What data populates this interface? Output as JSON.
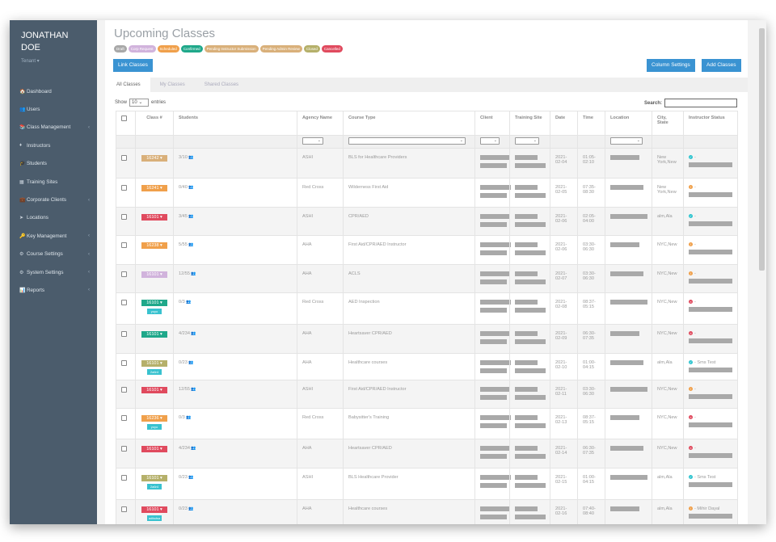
{
  "user": {
    "name_line1": "JONATHAN",
    "name_line2": "DOE",
    "tenant": "Tenant ▾"
  },
  "sidebar": {
    "items": [
      {
        "label": "Dashboard",
        "icon": "🏠",
        "chev": false
      },
      {
        "label": "Users",
        "icon": "👥",
        "chev": false
      },
      {
        "label": "Class Management",
        "icon": "📚",
        "chev": true
      },
      {
        "label": "Instructors",
        "icon": "♦",
        "chev": false
      },
      {
        "label": "Students",
        "icon": "🎓",
        "chev": false
      },
      {
        "label": "Training Sites",
        "icon": "▦",
        "chev": false
      },
      {
        "label": "Corporate Clients",
        "icon": "💼",
        "chev": true
      },
      {
        "label": "Locations",
        "icon": "➤",
        "chev": false
      },
      {
        "label": "Key Management",
        "icon": "🔑",
        "chev": true
      },
      {
        "label": "Course Settings",
        "icon": "⚙",
        "chev": true
      },
      {
        "label": "System Settings",
        "icon": "⚙",
        "chev": true
      },
      {
        "label": "Reports",
        "icon": "📊",
        "chev": true
      }
    ]
  },
  "page": {
    "title": "Upcoming Classes"
  },
  "legend": [
    {
      "label": "Draft",
      "color": "#a8a8a8"
    },
    {
      "label": "Corp Request",
      "color": "#d1b3dc"
    },
    {
      "label": "Scheduled",
      "color": "#f0a04b"
    },
    {
      "label": "Confirmed",
      "color": "#1fa88a"
    },
    {
      "label": "Pending Instructor Submission",
      "color": "#d9b07a"
    },
    {
      "label": "Pending Admin Review",
      "color": "#d9b07a"
    },
    {
      "label": "Closed",
      "color": "#b5b06a"
    },
    {
      "label": "Cancelled",
      "color": "#e04a5e"
    }
  ],
  "buttons": {
    "link": "Link Classes",
    "column_settings": "Column Settings",
    "add": "Add Classes"
  },
  "tabs": [
    "All Classes",
    "My Classes",
    "Shared Classes"
  ],
  "table_controls": {
    "show": "Show",
    "entries_value": "10 ⌄",
    "entries": "entries",
    "search": "Search:"
  },
  "columns": [
    "",
    "Class #",
    "Students",
    "Agency Name",
    "Course Type",
    "Client",
    "Training Site",
    "Date",
    "Time",
    "Location",
    "City, State",
    "Instructor Status"
  ],
  "status_colors": {
    "check": "#2ec4cf",
    "pending": "#f0a04b",
    "cancel": "#e04a5e"
  },
  "rows": [
    {
      "cls": "16242",
      "color": "#d9b07a",
      "tag": "",
      "students": "3/10",
      "agency": "ASHI",
      "course": "BLS for Healthcare Providers",
      "date": "2021-02-04",
      "time": "01:05-02:10",
      "city": "New York,New",
      "status": "check",
      "instr": "-"
    },
    {
      "cls": "16241",
      "color": "#f0a04b",
      "tag": "",
      "students": "0/40",
      "agency": "Red Cross",
      "course": "Wilderness First Aid",
      "date": "2021-02-05",
      "time": "07:35-08:30",
      "city": "New York,New",
      "status": "pending",
      "instr": "-"
    },
    {
      "cls": "16101",
      "color": "#e04a5e",
      "tag": "",
      "students": "3/45",
      "agency": "ASHI",
      "course": "CPR/AED",
      "date": "2021-02-06",
      "time": "02:05-04:00",
      "city": "alm,Ala",
      "status": "check",
      "instr": "-"
    },
    {
      "cls": "16238",
      "color": "#f0a04b",
      "tag": "",
      "students": "5/55",
      "agency": "AHA",
      "course": "First Aid/CPR/AED Instructor",
      "date": "2021-02-06",
      "time": "03:30-06:30",
      "city": "NYC,New",
      "status": "pending",
      "instr": "-"
    },
    {
      "cls": "16101",
      "color": "#d1b3dc",
      "tag": "",
      "students": "12/55",
      "agency": "AHA",
      "course": "ACLS",
      "date": "2021-02-07",
      "time": "03:30-06:30",
      "city": "NYC,New",
      "status": "pending",
      "instr": "-"
    },
    {
      "cls": "16101",
      "color": "#1fa88a",
      "tag": "yoyo",
      "students": "0/3",
      "agency": "Red Cross",
      "course": "AED Inspection",
      "date": "2021-02-08",
      "time": "08:37-05:15",
      "city": "NYC,New",
      "status": "cancel",
      "instr": "-"
    },
    {
      "cls": "16101",
      "color": "#1fa88a",
      "tag": "",
      "students": "4/234",
      "agency": "AHA",
      "course": "Heartsaver CPR/AED",
      "date": "2021-02-09",
      "time": "06:30-07:35",
      "city": "NYC,New",
      "status": "cancel",
      "instr": "-"
    },
    {
      "cls": "16101",
      "color": "#b5b06a",
      "tag": "2a6r4",
      "students": "0/23",
      "agency": "AHA",
      "course": "Healthcare courses",
      "date": "2021-02-10",
      "time": "01:00-04:15",
      "city": "alm,Ala",
      "status": "check",
      "instr": "- Sms Test"
    },
    {
      "cls": "16101",
      "color": "#e04a5e",
      "tag": "",
      "students": "12/55",
      "agency": "ASHI",
      "course": "First Aid/CPR/AED Instructor",
      "date": "2021-02-11",
      "time": "03:30-06:30",
      "city": "NYC,New",
      "status": "pending",
      "instr": "-"
    },
    {
      "cls": "16236",
      "color": "#f0a04b",
      "tag": "yoyo",
      "students": "0/3",
      "agency": "Red Cross",
      "course": "Babysitter's Training",
      "date": "2021-02-13",
      "time": "08:37-05:15",
      "city": "NYC,New",
      "status": "cancel",
      "instr": "-"
    },
    {
      "cls": "16101",
      "color": "#e04a5e",
      "tag": "",
      "students": "4/234",
      "agency": "AHA",
      "course": "Heartsaver CPR/AED",
      "date": "2021-02-14",
      "time": "06:30-07:35",
      "city": "NYC,New",
      "status": "cancel",
      "instr": "-"
    },
    {
      "cls": "16101",
      "color": "#b5b06a",
      "tag": "2a6r4",
      "students": "0/23",
      "agency": "ASHI",
      "course": "BLS Healthcare Provider",
      "date": "2021-02-15",
      "time": "01:00-04:15",
      "city": "alm,Ala",
      "status": "check",
      "instr": "- Sms Test"
    },
    {
      "cls": "16101",
      "color": "#e04a5e",
      "tag": "adfadsa",
      "students": "0/23",
      "agency": "AHA",
      "course": "Healthcare courses",
      "date": "2021-02-16",
      "time": "07:40-08:40",
      "city": "alm,Ala",
      "status": "pending",
      "instr": "- Mihir Dayal"
    }
  ]
}
